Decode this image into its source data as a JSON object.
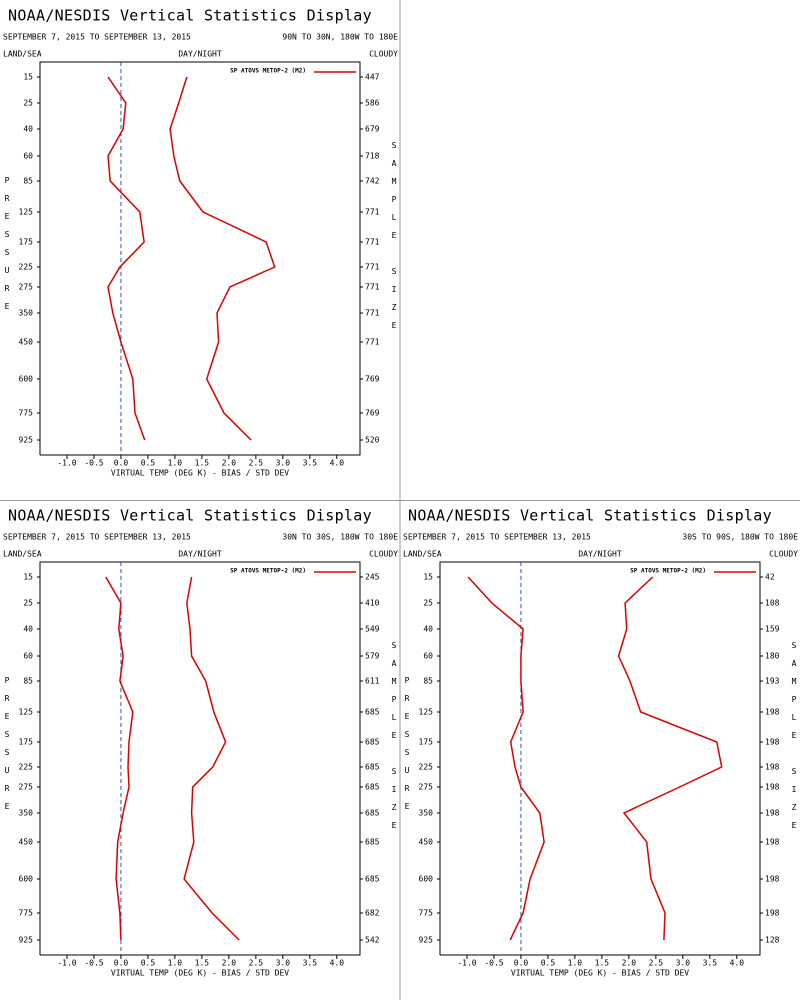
{
  "chart_data": [
    {
      "type": "line",
      "title": "NOAA/NESDIS Vertical Statistics Display",
      "subtitle": "SEPTEMBER 7, 2015 TO SEPTEMBER 13, 2015",
      "region": "90N TO 30N, 180W TO 180E",
      "left_label": "LAND/SEA",
      "center_label": "DAY/NIGHT",
      "right_label": "CLOUDY",
      "legend": "SP ATOVS METOP-2 (M2)",
      "ylabel": "PRESSURE",
      "y2label": "SAMPLE SIZE",
      "xlabel": "VIRTUAL TEMP (DEG K) - BIAS / STD DEV",
      "levels": [
        15,
        25,
        40,
        60,
        85,
        125,
        175,
        225,
        275,
        350,
        450,
        600,
        775,
        925
      ],
      "sample_size": [
        447,
        586,
        679,
        718,
        742,
        771,
        771,
        771,
        771,
        771,
        771,
        769,
        769,
        520
      ],
      "xlim": [
        -1.5,
        4.43
      ],
      "xticks": [
        {
          "value": -1,
          "label": "-1.0"
        },
        -0.5,
        {
          "value": 0,
          "label": "0.0"
        },
        0.5,
        {
          "value": 1,
          "label": "1.0"
        },
        1.5,
        {
          "value": 2,
          "label": "2.0"
        },
        2.5,
        {
          "value": 3,
          "label": "3.0"
        },
        3.5,
        {
          "value": 4,
          "label": "4.0"
        }
      ],
      "series": [
        {
          "color": "#dd0000",
          "values": [
            -0.24,
            0.09,
            0.04,
            -0.24,
            -0.2,
            0.35,
            0.43,
            -0.02,
            -0.24,
            -0.15,
            0.0,
            0.22,
            0.26,
            0.44
          ]
        },
        {
          "color": "#dd0000",
          "values": [
            1.22,
            1.07,
            0.91,
            0.98,
            1.09,
            1.52,
            2.69,
            2.85,
            2.02,
            1.78,
            1.81,
            1.59,
            1.91,
            2.41
          ]
        }
      ]
    },
    {
      "type": "line",
      "title": "NOAA/NESDIS Vertical Statistics Display",
      "subtitle": "SEPTEMBER 7, 2015 TO SEPTEMBER 13, 2015",
      "region": "30N TO 30S, 180W TO 180E",
      "left_label": "LAND/SEA",
      "center_label": "DAY/NIGHT",
      "right_label": "CLOUDY",
      "legend": "SP ATOVS METOP-2 (M2)",
      "ylabel": "PRESSURE",
      "y2label": "SAMPLE SIZE",
      "xlabel": "VIRTUAL TEMP (DEG K) - BIAS / STD DEV",
      "levels": [
        15,
        25,
        40,
        60,
        85,
        125,
        175,
        225,
        275,
        350,
        450,
        600,
        775,
        925
      ],
      "sample_size": [
        245,
        410,
        549,
        579,
        611,
        685,
        685,
        685,
        685,
        685,
        685,
        685,
        682,
        542
      ],
      "xlim": [
        -1.5,
        4.43
      ],
      "xticks": [
        {
          "value": -1,
          "label": "-1.0"
        },
        -0.5,
        {
          "value": 0,
          "label": "0.0"
        },
        0.5,
        {
          "value": 1,
          "label": "1.0"
        },
        1.5,
        {
          "value": 2,
          "label": "2.0"
        },
        2.5,
        {
          "value": 3,
          "label": "3.0"
        },
        3.5,
        {
          "value": 4,
          "label": "4.0"
        }
      ],
      "series": [
        {
          "color": "#dd0000",
          "values": [
            -0.28,
            0.0,
            -0.04,
            0.04,
            -0.02,
            0.22,
            0.15,
            0.13,
            0.15,
            0.04,
            -0.06,
            -0.09,
            -0.02,
            0.0
          ]
        },
        {
          "color": "#dd0000",
          "values": [
            1.31,
            1.22,
            1.28,
            1.31,
            1.57,
            1.72,
            1.94,
            1.7,
            1.33,
            1.31,
            1.35,
            1.17,
            1.69,
            2.19
          ]
        }
      ]
    },
    {
      "type": "line",
      "title": "NOAA/NESDIS Vertical Statistics Display",
      "subtitle": "SEPTEMBER 7, 2015 TO SEPTEMBER 13, 2015",
      "region": "30S TO 90S, 180W TO 180E",
      "left_label": "LAND/SEA",
      "center_label": "DAY/NIGHT",
      "right_label": "CLOUDY",
      "legend": "SP ATOVS METOP-2 (M2)",
      "ylabel": "PRESSURE",
      "y2label": "SAMPLE SIZE",
      "xlabel": "VIRTUAL TEMP (DEG K) - BIAS / STD DEV",
      "levels": [
        15,
        25,
        40,
        60,
        85,
        125,
        175,
        225,
        275,
        350,
        450,
        600,
        775,
        925
      ],
      "sample_size": [
        42,
        108,
        159,
        180,
        193,
        198,
        198,
        198,
        198,
        198,
        198,
        198,
        198,
        128
      ],
      "xlim": [
        -1.5,
        4.43
      ],
      "xticks": [
        {
          "value": -1,
          "label": "-1.0"
        },
        -0.5,
        {
          "value": 0,
          "label": "0.0"
        },
        0.5,
        {
          "value": 1,
          "label": "1.0"
        },
        1.5,
        {
          "value": 2,
          "label": "2.0"
        },
        2.5,
        {
          "value": 3,
          "label": "3.0"
        },
        3.5,
        {
          "value": 4,
          "label": "4.0"
        }
      ],
      "series": [
        {
          "color": "#dd0000",
          "values": [
            -0.98,
            -0.54,
            0.04,
            0.0,
            0.0,
            0.04,
            -0.19,
            -0.11,
            0.0,
            0.35,
            0.43,
            0.17,
            0.04,
            -0.2
          ]
        },
        {
          "color": "#dd0000",
          "values": [
            2.44,
            1.93,
            1.96,
            1.81,
            2.02,
            2.22,
            3.63,
            3.72,
            2.94,
            1.91,
            2.33,
            2.41,
            2.67,
            2.65
          ]
        }
      ]
    }
  ]
}
